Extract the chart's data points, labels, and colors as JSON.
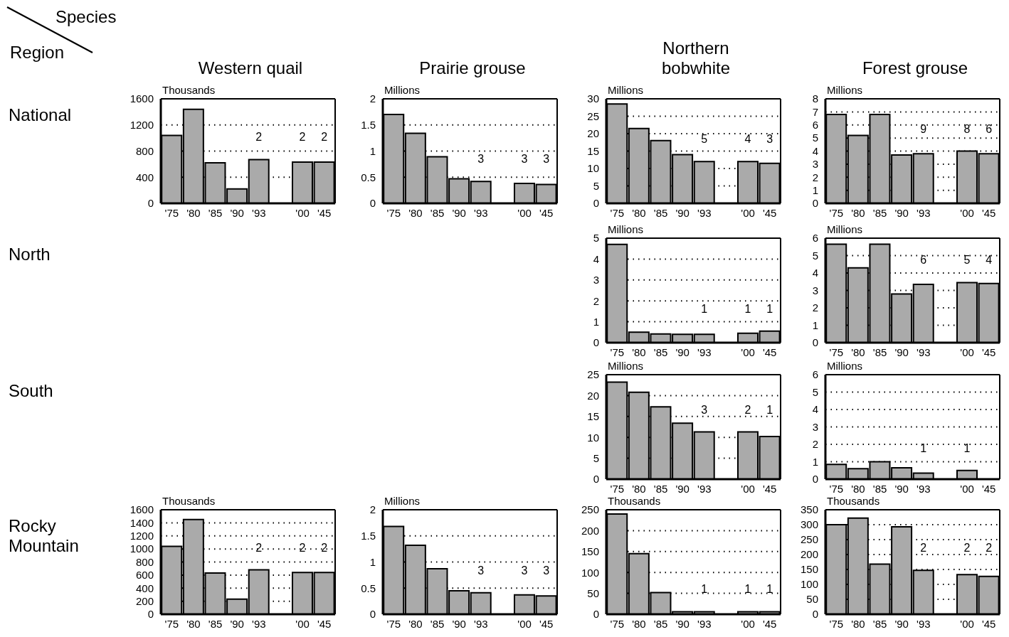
{
  "chart_data": [
    {
      "type": "bar",
      "title": "Western quail",
      "subtitle": "National",
      "ylabel": "Thousands",
      "categories": [
        "'75",
        "'80",
        "'85",
        "'90",
        "'93",
        null,
        "'00",
        "'45"
      ],
      "values": [
        1040,
        1440,
        620,
        220,
        670,
        null,
        630,
        630
      ],
      "color": "#aaaaaa",
      "ylim": [
        0,
        1600
      ],
      "yticks": [
        0,
        400,
        800,
        1200,
        1600
      ],
      "grid": "y",
      "annotations": [
        "Species",
        "Region",
        "2",
        "2",
        "2"
      ]
    },
    {
      "type": "bar",
      "title": "Prairie grouse",
      "ylabel": "Millions",
      "categories": [
        "'75",
        "'80",
        "'85",
        "'90",
        "'93",
        null,
        "'00",
        "'45"
      ],
      "values": [
        1.7,
        1.34,
        0.89,
        0.47,
        0.42,
        null,
        0.38,
        0.36
      ],
      "color": "#aaaaaa",
      "ylim": [
        0,
        2
      ],
      "yticks": [
        0,
        0.5,
        1,
        1.5,
        2
      ],
      "grid": "y",
      "annotations": [
        "3",
        "3",
        "3"
      ]
    },
    {
      "type": "bar",
      "title": "Northern bobwhite",
      "ylabel": "Millions",
      "categories": [
        "'75",
        "'80",
        "'85",
        "'90",
        "'93",
        null,
        "'00",
        "'45"
      ],
      "values": [
        28.5,
        21.5,
        18,
        14,
        12,
        null,
        12,
        11.5
      ],
      "color": "#aaaaaa",
      "ylim": [
        0,
        30
      ],
      "yticks": [
        0,
        5,
        10,
        15,
        20,
        25,
        30
      ],
      "grid": "y",
      "annotations": [
        "5",
        "4",
        "3"
      ]
    },
    {
      "type": "bar",
      "title": "Forest grouse",
      "ylabel": "Millions",
      "categories": [
        "'75",
        "'80",
        "'85",
        "'90",
        "'93",
        null,
        "'00",
        "'45"
      ],
      "values": [
        6.8,
        5.2,
        6.8,
        3.7,
        3.8,
        null,
        4.0,
        3.8
      ],
      "color": "#aaaaaa",
      "ylim": [
        0,
        8
      ],
      "yticks": [
        0,
        1,
        2,
        3,
        4,
        5,
        6,
        7,
        8
      ],
      "grid": "y",
      "annotations": [
        "9",
        "8",
        "6"
      ]
    },
    {
      "type": "bar",
      "ylabel": "Millions",
      "categories": [
        "'75",
        "'80",
        "'85",
        "'90",
        "'93",
        null,
        "'00",
        "'45"
      ],
      "values": [
        4.7,
        0.5,
        0.42,
        0.4,
        0.4,
        null,
        0.45,
        0.55
      ],
      "color": "#aaaaaa",
      "ylim": [
        0,
        5
      ],
      "yticks": [
        0,
        1,
        2,
        3,
        4,
        5
      ],
      "grid": "y",
      "annotations": [
        "North",
        "1",
        "1",
        "1"
      ]
    },
    {
      "type": "bar",
      "ylabel": "Millions",
      "categories": [
        "'75",
        "'80",
        "'85",
        "'90",
        "'93",
        null,
        "'00",
        "'45"
      ],
      "values": [
        5.65,
        4.3,
        5.65,
        2.8,
        3.35,
        null,
        3.45,
        3.4
      ],
      "color": "#aaaaaa",
      "ylim": [
        0,
        6
      ],
      "yticks": [
        0,
        1,
        2,
        3,
        4,
        5,
        6
      ],
      "grid": "y",
      "annotations": [
        "6",
        "5",
        "4"
      ]
    },
    {
      "type": "bar",
      "ylabel": "Millions",
      "categories": [
        "'75",
        "'80",
        "'85",
        "'90",
        "'93",
        null,
        "'00",
        "'45"
      ],
      "values": [
        23.2,
        20.8,
        17.3,
        13.4,
        11.3,
        null,
        11.3,
        10.2
      ],
      "color": "#aaaaaa",
      "ylim": [
        0,
        25
      ],
      "yticks": [
        0,
        5,
        10,
        15,
        20,
        25
      ],
      "grid": "y",
      "annotations": [
        "South",
        "3",
        "2",
        "1"
      ]
    },
    {
      "type": "bar",
      "ylabel": "Millions",
      "categories": [
        "'75",
        "'80",
        "'85",
        "'90",
        "'93",
        null,
        "'00",
        "'45"
      ],
      "values": [
        0.85,
        0.6,
        1.0,
        0.65,
        0.35,
        null,
        0.5,
        null
      ],
      "color": "#aaaaaa",
      "ylim": [
        0,
        6
      ],
      "yticks": [
        0,
        1,
        2,
        3,
        4,
        5,
        6
      ],
      "grid": "y",
      "annotations": [
        "1",
        "1"
      ]
    },
    {
      "type": "bar",
      "subtitle": "Rocky\nMountain",
      "ylabel": "Thousands",
      "categories": [
        "'75",
        "'80",
        "'85",
        "'90",
        "'93",
        null,
        "'00",
        "'45"
      ],
      "values": [
        1040,
        1450,
        630,
        230,
        680,
        null,
        640,
        640
      ],
      "color": "#aaaaaa",
      "ylim": [
        0,
        1600
      ],
      "yticks": [
        0,
        200,
        400,
        600,
        800,
        1000,
        1200,
        1400,
        1600
      ],
      "grid": "y",
      "annotations": [
        "2",
        "2",
        "2"
      ]
    },
    {
      "type": "bar",
      "ylabel": "Millions",
      "categories": [
        "'75",
        "'80",
        "'85",
        "'90",
        "'93",
        null,
        "'00",
        "'45"
      ],
      "values": [
        1.68,
        1.32,
        0.87,
        0.45,
        0.41,
        null,
        0.37,
        0.35
      ],
      "color": "#aaaaaa",
      "ylim": [
        0,
        2
      ],
      "yticks": [
        0,
        0.5,
        1,
        1.5,
        2
      ],
      "grid": "y",
      "annotations": [
        "3",
        "3",
        "3"
      ]
    },
    {
      "type": "bar",
      "ylabel": "Thousands",
      "categories": [
        "'75",
        "'80",
        "'85",
        "'90",
        "'93",
        null,
        "'00",
        "'45"
      ],
      "values": [
        240,
        145,
        52,
        6,
        6,
        null,
        6,
        6
      ],
      "color": "#aaaaaa",
      "ylim": [
        0,
        250
      ],
      "yticks": [
        0,
        50,
        100,
        150,
        200,
        250
      ],
      "grid": "y",
      "annotations": [
        "1",
        "1",
        "1"
      ]
    },
    {
      "type": "bar",
      "ylabel": "Thousands",
      "categories": [
        "'75",
        "'80",
        "'85",
        "'90",
        "'93",
        null,
        "'00",
        "'45"
      ],
      "values": [
        300,
        322,
        168,
        293,
        147,
        null,
        133,
        127
      ],
      "color": "#aaaaaa",
      "ylim": [
        0,
        350
      ],
      "yticks": [
        0,
        50,
        100,
        150,
        200,
        250,
        300,
        350
      ],
      "grid": "y",
      "annotations": [
        "2",
        "2",
        "2"
      ]
    }
  ]
}
